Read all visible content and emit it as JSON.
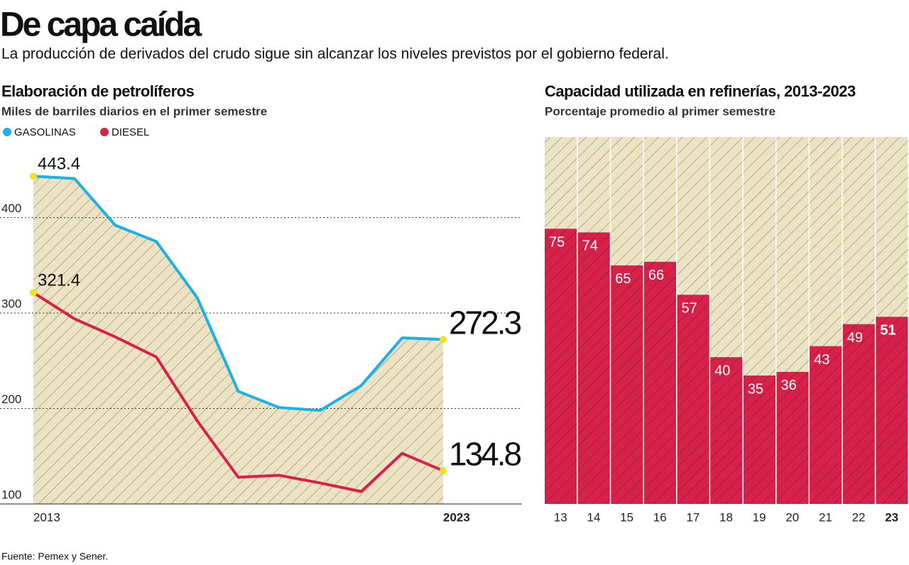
{
  "title": "De capa caída",
  "subtitle": "La producción de derivados del crudo sigue sin alcanzar los niveles previstos por el gobierno federal.",
  "source": "Fuente: Pemex y Sener.",
  "chart_data": [
    {
      "type": "line",
      "title": "Elaboración de petrolíferos",
      "subtitle": "Miles de barriles diarios en el primer semestre",
      "categories": [
        "2013",
        null,
        null,
        null,
        null,
        null,
        null,
        null,
        null,
        null,
        "2023"
      ],
      "series": [
        {
          "name": "GASOLINAS",
          "color": "#1fb0e6",
          "values": [
            443.4,
            441,
            392,
            375,
            316,
            218,
            201,
            198,
            224,
            274,
            272.3
          ]
        },
        {
          "name": "DIESEL",
          "color": "#d6224a",
          "values": [
            321.4,
            294,
            275,
            254,
            187,
            128,
            130,
            122,
            113,
            153,
            134.8
          ]
        }
      ],
      "ylim": [
        100,
        480
      ],
      "yticks": [
        100,
        200,
        300,
        400
      ],
      "grid": true
    },
    {
      "type": "bar",
      "title": "Capacidad utilizada en refinerías, 2013-2023",
      "subtitle": "Porcentaje promedio al primer semestre",
      "categories": [
        "13",
        "14",
        "15",
        "16",
        "17",
        "18",
        "19",
        "20",
        "21",
        "22",
        "23"
      ],
      "values": [
        75,
        74,
        65,
        66,
        57,
        40,
        35,
        36,
        43,
        49,
        51
      ],
      "color": "#d6224a",
      "ylim": [
        0,
        100
      ]
    }
  ]
}
